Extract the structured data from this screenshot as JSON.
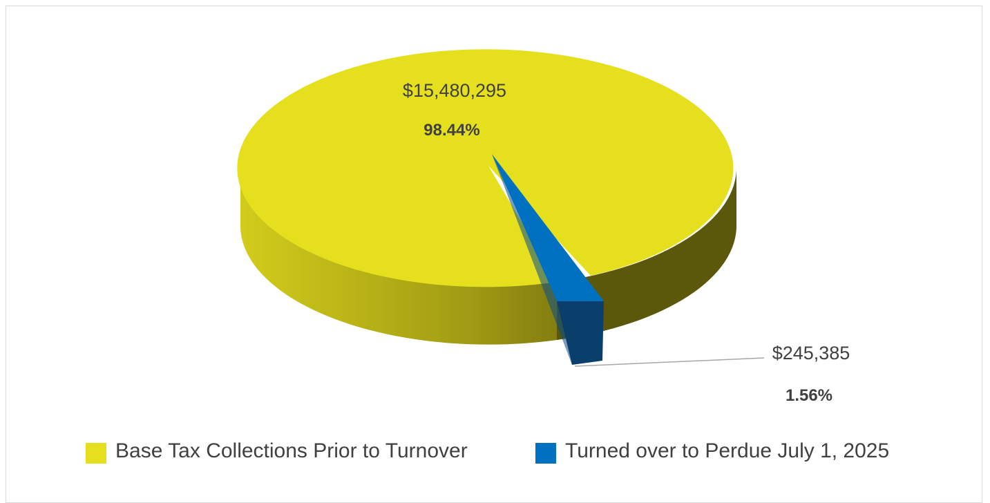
{
  "chart_data": {
    "type": "pie",
    "style": "3d",
    "slices": [
      {
        "name": "Base Tax Collections Prior to Turnover",
        "value": 15480295,
        "value_label": "$15,480,295",
        "percent": 98.44,
        "percent_label": "98.44%",
        "color": "#e5df1e"
      },
      {
        "name": "Turned over to Perdue July 1, 2025",
        "value": 245385,
        "value_label": "$245,385",
        "percent": 1.56,
        "percent_label": "1.56%",
        "color": "#0070c0",
        "exploded": true
      }
    ],
    "legend_position": "bottom"
  }
}
